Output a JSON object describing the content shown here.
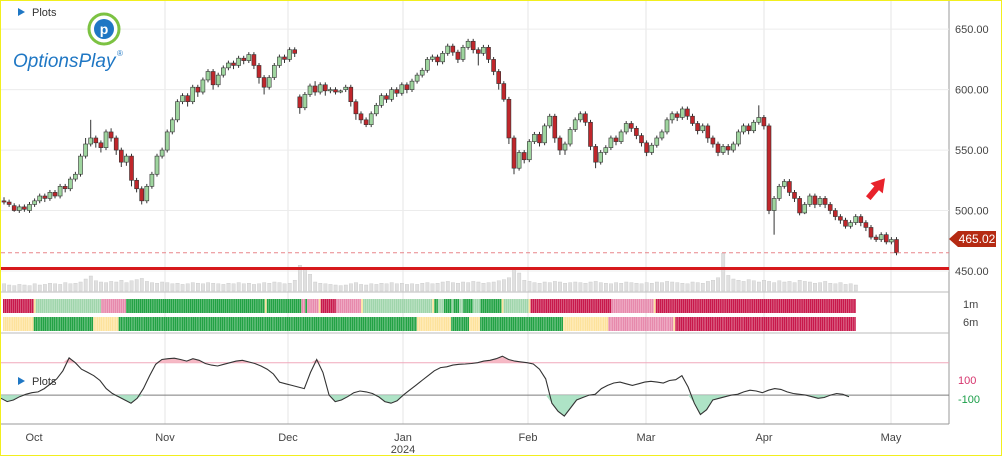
{
  "header": {
    "plots_label": "Plots",
    "lower_plots_label": "Plots",
    "brand": "OptionsPlay",
    "brand_mark": "®"
  },
  "colors": {
    "up": "#9fd59f",
    "down": "#c0262b",
    "price_line": "#d7191c",
    "price_tag": "#b52a12",
    "reference_line": "#e8858a",
    "arrow": "#e8222b",
    "strong_green": "#22a244",
    "light_green": "#9fd5ab",
    "yellow": "#fde29b",
    "pink": "#e789ac",
    "crimson": "#c8184b",
    "gray": "#cfcfcf",
    "volume": "#e0e0e0",
    "osc_pos": "#f6b9c5",
    "osc_neg": "#aee3c6",
    "brand_blue": "#1f77c4"
  },
  "chart_data": {
    "type": "candlestick",
    "price_axis": {
      "ticks": [
        "650.00",
        "600.00",
        "550.00",
        "500.00",
        "450.00"
      ],
      "ylim": [
        445,
        670
      ]
    },
    "x_axis": {
      "ticks": [
        "Oct",
        "Nov",
        "Dec",
        "2024",
        "Jan",
        "Feb",
        "Mar",
        "Apr",
        "May"
      ],
      "year_label": "2024"
    },
    "last_price": {
      "value": 465.02,
      "label": "465.02"
    },
    "reference_level": 452,
    "arrow": "up",
    "candles": [
      [
        508,
        507,
        511,
        505
      ],
      [
        507,
        505,
        509,
        503
      ],
      [
        504,
        500,
        506,
        499
      ],
      [
        500,
        503,
        505,
        498
      ],
      [
        503,
        501,
        505,
        499
      ],
      [
        500,
        505,
        507,
        498
      ],
      [
        505,
        508,
        510,
        503
      ],
      [
        508,
        512,
        514,
        506
      ],
      [
        512,
        510,
        514,
        507
      ],
      [
        510,
        515,
        517,
        508
      ],
      [
        515,
        512,
        517,
        510
      ],
      [
        512,
        520,
        522,
        510
      ],
      [
        520,
        518,
        522,
        515
      ],
      [
        518,
        526,
        528,
        516
      ],
      [
        526,
        530,
        532,
        524
      ],
      [
        530,
        545,
        547,
        528
      ],
      [
        545,
        555,
        560,
        543
      ],
      [
        555,
        560,
        575,
        553
      ],
      [
        560,
        556,
        562,
        552
      ],
      [
        556,
        552,
        558,
        548
      ],
      [
        552,
        565,
        567,
        550
      ],
      [
        565,
        560,
        568,
        557
      ],
      [
        560,
        550,
        562,
        546
      ],
      [
        550,
        540,
        552,
        536
      ],
      [
        540,
        545,
        547,
        537
      ],
      [
        545,
        525,
        547,
        520
      ],
      [
        525,
        518,
        527,
        515
      ],
      [
        518,
        508,
        520,
        505
      ],
      [
        508,
        520,
        522,
        506
      ],
      [
        520,
        530,
        532,
        518
      ],
      [
        530,
        545,
        547,
        528
      ],
      [
        545,
        550,
        552,
        543
      ],
      [
        550,
        565,
        567,
        548
      ],
      [
        565,
        575,
        577,
        563
      ],
      [
        575,
        590,
        592,
        573
      ],
      [
        590,
        595,
        597,
        588
      ],
      [
        595,
        590,
        597,
        586
      ],
      [
        590,
        602,
        604,
        588
      ],
      [
        602,
        598,
        604,
        594
      ],
      [
        598,
        608,
        610,
        596
      ],
      [
        608,
        615,
        617,
        606
      ],
      [
        615,
        604,
        617,
        600
      ],
      [
        604,
        612,
        614,
        602
      ],
      [
        612,
        618,
        620,
        610
      ],
      [
        618,
        622,
        624,
        616
      ],
      [
        622,
        620,
        624,
        617
      ],
      [
        620,
        626,
        628,
        618
      ],
      [
        626,
        624,
        628,
        621
      ],
      [
        624,
        629,
        631,
        622
      ],
      [
        629,
        620,
        631,
        617
      ],
      [
        620,
        610,
        622,
        605
      ],
      [
        610,
        602,
        612,
        596
      ],
      [
        602,
        610,
        612,
        600
      ],
      [
        610,
        620,
        622,
        608
      ],
      [
        620,
        627,
        629,
        618
      ],
      [
        627,
        625,
        629,
        622
      ],
      [
        625,
        633,
        635,
        623
      ],
      [
        633,
        630,
        635,
        627
      ],
      [
        594,
        585,
        596,
        580
      ],
      [
        585,
        596,
        598,
        583
      ],
      [
        596,
        603,
        605,
        594
      ],
      [
        603,
        598,
        607,
        595
      ],
      [
        598,
        604,
        606,
        596
      ],
      [
        604,
        599,
        606,
        595
      ],
      [
        599,
        600,
        602,
        597
      ],
      [
        600,
        598,
        602,
        596
      ],
      [
        598,
        599,
        600,
        597
      ],
      [
        600,
        602,
        604,
        598
      ],
      [
        602,
        590,
        604,
        586
      ],
      [
        590,
        580,
        592,
        575
      ],
      [
        580,
        575,
        582,
        572
      ],
      [
        575,
        571,
        577,
        569
      ],
      [
        571,
        580,
        582,
        569
      ],
      [
        580,
        587,
        589,
        578
      ],
      [
        587,
        595,
        597,
        585
      ],
      [
        595,
        592,
        597,
        589
      ],
      [
        592,
        600,
        602,
        590
      ],
      [
        600,
        597,
        602,
        594
      ],
      [
        597,
        604,
        606,
        595
      ],
      [
        604,
        600,
        606,
        597
      ],
      [
        600,
        607,
        609,
        598
      ],
      [
        607,
        612,
        614,
        605
      ],
      [
        612,
        616,
        618,
        610
      ],
      [
        616,
        625,
        627,
        614
      ],
      [
        625,
        627,
        629,
        623
      ],
      [
        627,
        623,
        629,
        620
      ],
      [
        623,
        630,
        632,
        621
      ],
      [
        630,
        636,
        638,
        628
      ],
      [
        636,
        631,
        638,
        628
      ],
      [
        631,
        625,
        633,
        622
      ],
      [
        625,
        635,
        637,
        623
      ],
      [
        635,
        640,
        642,
        633
      ],
      [
        640,
        633,
        642,
        630
      ],
      [
        633,
        630,
        635,
        620
      ],
      [
        630,
        635,
        637,
        628
      ],
      [
        635,
        625,
        637,
        622
      ],
      [
        625,
        615,
        627,
        612
      ],
      [
        615,
        605,
        617,
        600
      ],
      [
        605,
        592,
        607,
        590
      ],
      [
        592,
        560,
        594,
        555
      ],
      [
        560,
        535,
        562,
        530
      ],
      [
        535,
        548,
        550,
        533
      ],
      [
        548,
        542,
        550,
        539
      ],
      [
        542,
        557,
        559,
        540
      ],
      [
        557,
        563,
        565,
        555
      ],
      [
        563,
        556,
        565,
        553
      ],
      [
        556,
        570,
        572,
        554
      ],
      [
        570,
        578,
        580,
        568
      ],
      [
        578,
        560,
        580,
        556
      ],
      [
        560,
        550,
        562,
        546
      ],
      [
        550,
        555,
        557,
        546
      ],
      [
        555,
        567,
        569,
        553
      ],
      [
        567,
        575,
        577,
        565
      ],
      [
        575,
        580,
        582,
        573
      ],
      [
        580,
        573,
        582,
        570
      ],
      [
        573,
        553,
        575,
        550
      ],
      [
        553,
        540,
        555,
        535
      ],
      [
        540,
        548,
        550,
        538
      ],
      [
        548,
        552,
        554,
        546
      ],
      [
        552,
        560,
        562,
        550
      ],
      [
        560,
        557,
        562,
        554
      ],
      [
        557,
        565,
        567,
        555
      ],
      [
        565,
        572,
        574,
        563
      ],
      [
        572,
        568,
        574,
        565
      ],
      [
        568,
        562,
        570,
        559
      ],
      [
        562,
        556,
        564,
        553
      ],
      [
        556,
        548,
        558,
        545
      ],
      [
        548,
        554,
        556,
        546
      ],
      [
        554,
        560,
        562,
        552
      ],
      [
        560,
        565,
        567,
        558
      ],
      [
        565,
        575,
        577,
        563
      ],
      [
        575,
        580,
        582,
        572
      ],
      [
        580,
        577,
        582,
        574
      ],
      [
        577,
        584,
        586,
        575
      ],
      [
        584,
        578,
        586,
        575
      ],
      [
        578,
        572,
        580,
        570
      ],
      [
        572,
        566,
        574,
        563
      ],
      [
        566,
        570,
        572,
        564
      ],
      [
        570,
        560,
        572,
        556
      ],
      [
        560,
        555,
        562,
        552
      ],
      [
        555,
        548,
        557,
        545
      ],
      [
        548,
        553,
        555,
        546
      ],
      [
        553,
        550,
        555,
        546
      ],
      [
        550,
        555,
        557,
        548
      ],
      [
        555,
        565,
        567,
        553
      ],
      [
        565,
        570,
        572,
        563
      ],
      [
        570,
        566,
        572,
        563
      ],
      [
        566,
        573,
        575,
        564
      ],
      [
        573,
        577,
        587,
        571
      ],
      [
        577,
        570,
        579,
        567
      ],
      [
        570,
        500,
        572,
        497
      ],
      [
        500,
        510,
        512,
        480
      ],
      [
        510,
        520,
        522,
        508
      ],
      [
        520,
        524,
        526,
        518
      ],
      [
        524,
        515,
        526,
        512
      ],
      [
        515,
        510,
        517,
        507
      ],
      [
        510,
        498,
        512,
        496
      ],
      [
        498,
        505,
        507,
        497
      ],
      [
        505,
        512,
        514,
        503
      ],
      [
        512,
        505,
        514,
        502
      ],
      [
        505,
        510,
        512,
        503
      ],
      [
        510,
        505,
        512,
        502
      ],
      [
        505,
        500,
        507,
        497
      ],
      [
        500,
        495,
        502,
        492
      ],
      [
        495,
        492,
        497,
        489
      ],
      [
        492,
        487,
        494,
        485
      ],
      [
        487,
        490,
        492,
        485
      ],
      [
        490,
        495,
        497,
        488
      ],
      [
        495,
        490,
        497,
        487
      ],
      [
        490,
        486,
        492,
        483
      ],
      [
        486,
        478,
        488,
        476
      ],
      [
        478,
        476,
        480,
        474
      ],
      [
        476,
        480,
        482,
        474
      ],
      [
        480,
        474,
        482,
        472
      ],
      [
        474,
        476,
        478,
        472
      ],
      [
        476,
        465,
        478,
        463
      ]
    ],
    "volume": [
      12,
      10,
      9,
      11,
      10,
      9,
      12,
      10,
      11,
      13,
      12,
      11,
      14,
      12,
      13,
      15,
      20,
      25,
      17,
      15,
      14,
      16,
      15,
      18,
      14,
      17,
      19,
      21,
      16,
      14,
      13,
      15,
      14,
      12,
      13,
      11,
      12,
      14,
      13,
      12,
      14,
      13,
      12,
      11,
      13,
      12,
      14,
      12,
      13,
      11,
      12,
      14,
      13,
      15,
      14,
      12,
      13,
      18,
      43,
      38,
      28,
      15,
      13,
      12,
      11,
      10,
      9,
      10,
      12,
      14,
      11,
      10,
      12,
      11,
      13,
      12,
      14,
      12,
      13,
      11,
      12,
      11,
      13,
      14,
      12,
      13,
      15,
      16,
      14,
      13,
      15,
      14,
      16,
      15,
      13,
      14,
      15,
      17,
      19,
      22,
      36,
      30,
      18,
      16,
      14,
      13,
      15,
      14,
      16,
      15,
      13,
      14,
      15,
      14,
      13,
      15,
      16,
      14,
      13,
      12,
      14,
      13,
      15,
      14,
      13,
      12,
      14,
      13,
      15,
      14,
      16,
      15,
      14,
      13,
      12,
      15,
      14,
      13,
      16,
      18,
      22,
      63,
      26,
      20,
      18,
      16,
      19,
      17,
      15,
      18,
      16,
      14,
      17,
      15,
      16,
      14,
      18,
      16,
      15,
      13,
      14,
      16,
      13,
      12,
      14,
      11,
      12,
      10
    ],
    "volume_series": [
      "lglglglglglglgllllglglgllgggggggggggggggggggggggggggggggggggggggggggggggggggglglglglglggg",
      "gyyyggggggggygygggggggggggggggggygyyyyyyyyyyyyyyyyyyyyyyyyygggggggggggggggggggggggggggggg"
    ],
    "indicator_rows": [
      {
        "name": "1m",
        "pattern": "CCCCCCCCCCCCCCCCYLLLLLLLLLLLLLLLLLLLLLLLLLLLLLLLLLLPPPPPPPPPPPPPGGGGGGGGGGGGGGGGGGGGGGGGGGGGGGGGGGGGGGGGGGGGGGGGGGGGGGGGGGGGGGGGGGGGGGGGYGGGGGGGGGGGGGGGGGGPPGPPPPPPYCCCCCCCCPPPPPPPPPPPPPYLLLLLLLLLLLLLLLLLLLLLLLLLLLLLLLLLLLLYGGLLLGGGGLGGGLLGGGGGLLLLGGGGGGGGGGGYLLLLLLLLLLLLLYCCCCCCCCCCCCCCCCCCCCCCCCCCCCCCCCCCCCCCCCCCPPPPPPPPPPPPPPPPPPPPPPYCCCCCCCCCCCCCCCCCCCCCCCCCCCCCCCCCCCCCCCCCCCCCCCCCCCCCCCCCCCCCCCCCCCCCCCCCCCCCCCCCCCCCCCCCCCCCCCCCCCCCCCC"
      },
      {
        "name": "6m",
        "pattern": "YYYYYYYYYYYYYYYYYGGGGGGGGGGGGGGGGGGGGGGGGGGGGGGGGGYYYYYYYYYYYYYYGGGGGGGGGGGGGGGGGGGGGGGGGGGGGGGGGGGGGGGGGGGGGGGGGGGGGGGGGGGGGGGGGGGGGGGGGGGGGGGGGGGGGGGGGGGGGGGGGGGGGGGGGGGGGGGGGGGGGGGGGGGGGGGGGGGGGGGGGGGGGGGGGGGGGGGGGGGGGGGGGGGGGYYYYYYYYYYYYYYYYYYYGGGGGGGGGGYYYYYYGGGGGGGGGGGGGGGGGGGGGGGGGGGGGGGGGGGGGGGGGGGGGGYYYYYYYYYYYYYYYYYYYYYYYYYPPPPPPPPPPPPPPPPPPPPPPPPPPPPPPPPPPPPYCCCCCCCCCCCCCCCCCCCCCCCCCCCCCCCCCCCCCCCCCCCCCCCCCCCCCCCCCCCCCCCCCCCCCCCCCCCCCCCCCCCCCCCCCCCCCCCCCCCC"
      }
    ],
    "oscillator": {
      "levels": [
        {
          "value": 100,
          "label": "100"
        },
        {
          "value": -100,
          "label": "-100"
        }
      ],
      "ylim": [
        -260,
        160
      ],
      "values": [
        -120,
        -140,
        -130,
        -110,
        -95,
        -85,
        -80,
        -60,
        -30,
        0,
        50,
        130,
        100,
        60,
        40,
        20,
        -10,
        -60,
        -90,
        -110,
        -130,
        -150,
        -120,
        -60,
        20,
        90,
        120,
        125,
        128,
        120,
        110,
        125,
        115,
        95,
        85,
        80,
        90,
        100,
        110,
        115,
        105,
        95,
        80,
        60,
        30,
        -20,
        -30,
        -40,
        -50,
        -60,
        40,
        120,
        40,
        -100,
        -140,
        -130,
        -110,
        -85,
        -75,
        -80,
        -90,
        -110,
        -140,
        -150,
        -135,
        -100,
        -70,
        -40,
        -10,
        20,
        50,
        70,
        75,
        85,
        90,
        92,
        95,
        100,
        110,
        115,
        125,
        140,
        120,
        110,
        105,
        100,
        92,
        60,
        0,
        -150,
        -200,
        -230,
        -180,
        -130,
        -115,
        -100,
        -95,
        -60,
        -40,
        -25,
        -20,
        -30,
        -40,
        -30,
        -20,
        -15,
        -20,
        -25,
        -10,
        -5,
        20,
        -50,
        -150,
        -220,
        -190,
        -130,
        -120,
        -110,
        -100,
        -95,
        -80,
        -70,
        -75,
        -85,
        -70,
        -60,
        -65,
        -80,
        -90,
        -95,
        -100,
        -110,
        -120,
        -115,
        -100,
        -90,
        -95,
        -110
      ]
    }
  }
}
